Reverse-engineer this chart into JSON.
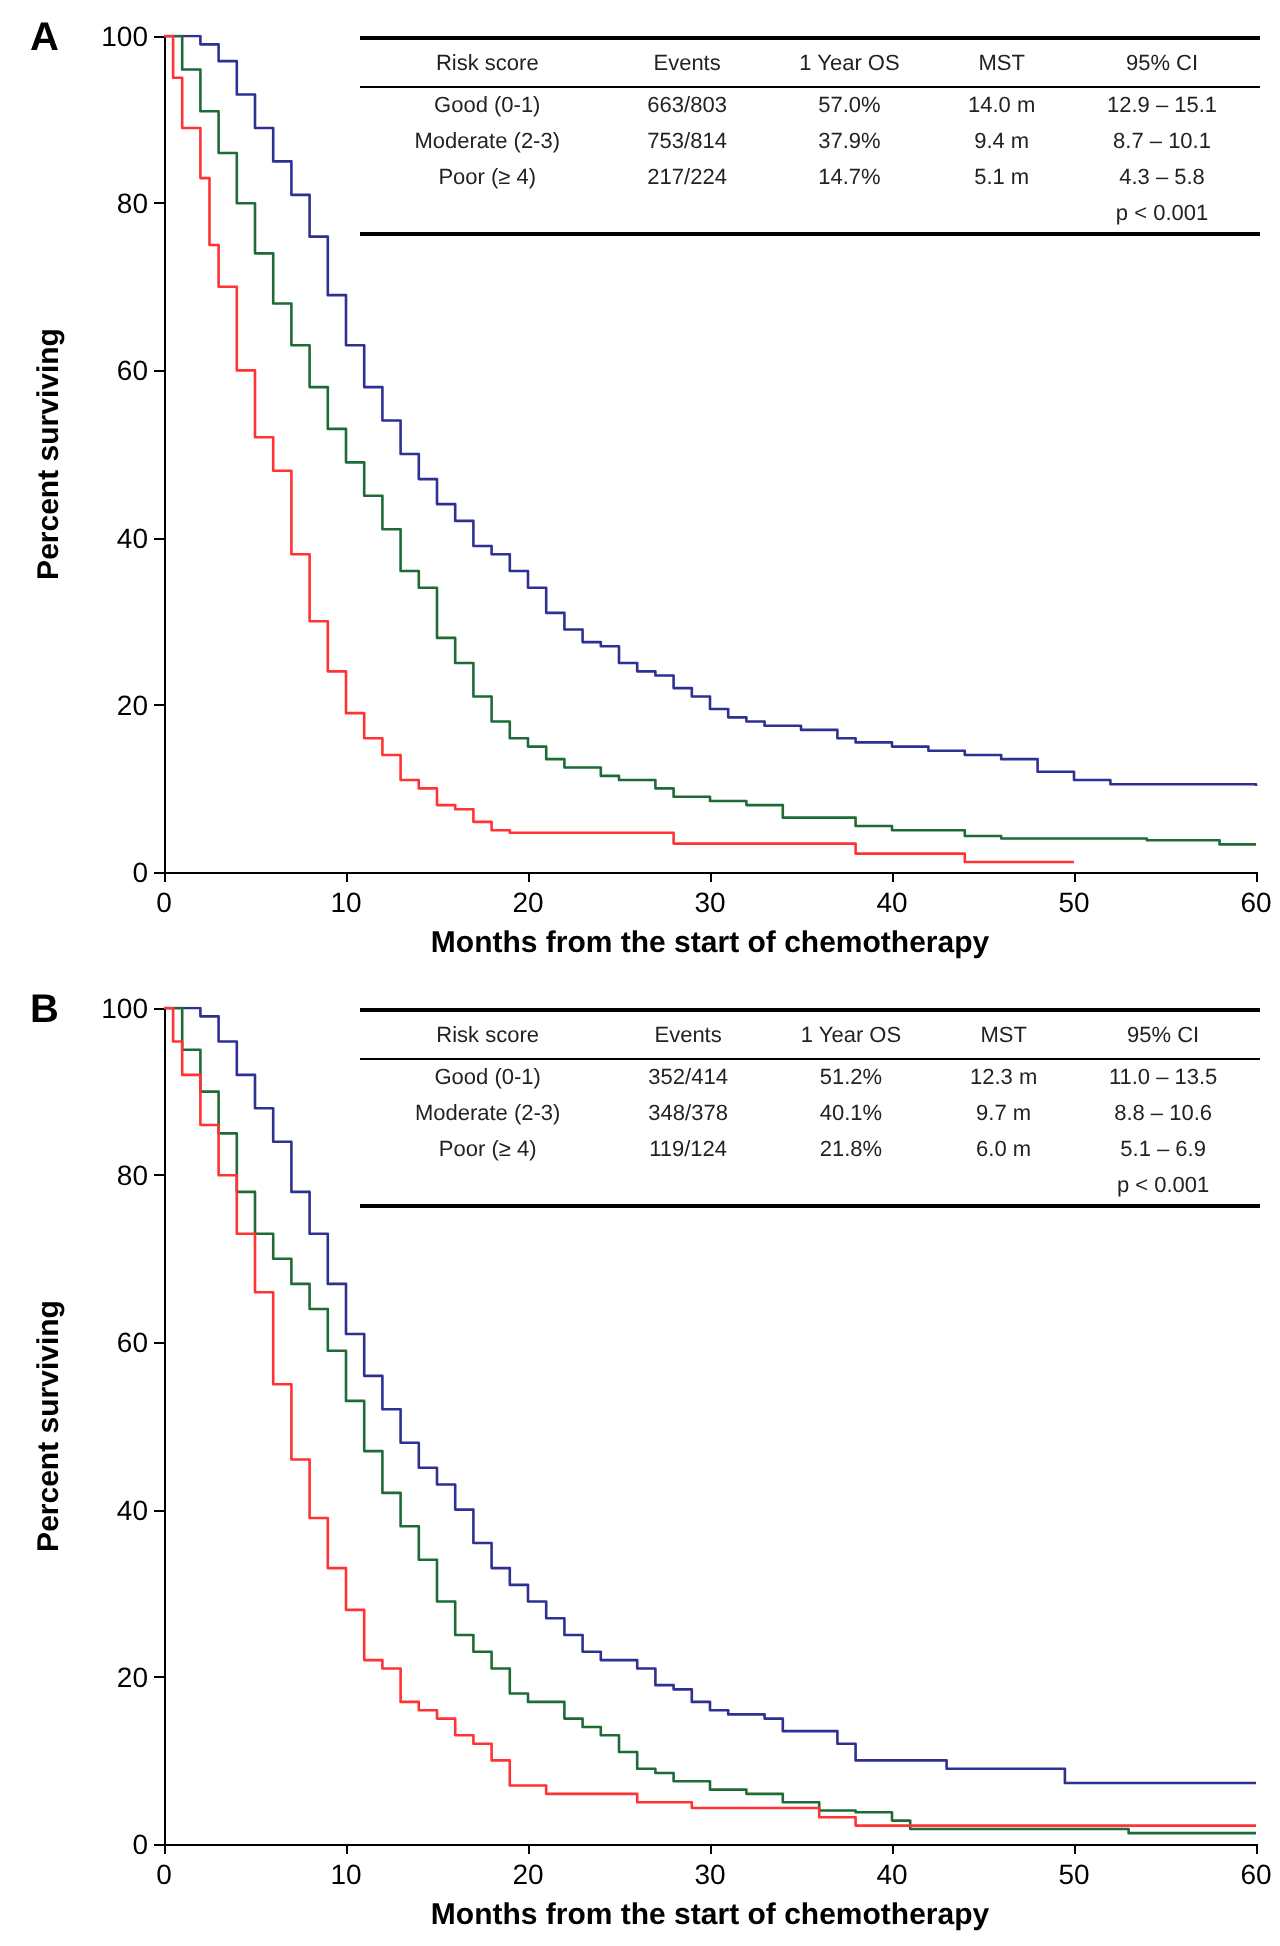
{
  "chart_data": [
    {
      "type": "step",
      "title": "A",
      "xlabel": "Months from the start of chemotherapy",
      "ylabel": "Percent surviving",
      "xlim": [
        0,
        60
      ],
      "xticks": [
        0,
        10,
        20,
        30,
        40,
        50,
        60
      ],
      "ylim": [
        0,
        100
      ],
      "yticks": [
        0,
        20,
        40,
        60,
        80,
        100
      ],
      "grid": false,
      "marker": "none",
      "line_style": "solid",
      "annotations": [
        "Risk score",
        "Events",
        "1 Year OS",
        "MST",
        "95% CI",
        "Good (0-1)",
        "663/803",
        "57.0%",
        "14.0 m",
        "12.9 – 15.1",
        "Moderate (2-3)",
        "753/814",
        "37.9%",
        "9.4 m",
        "8.7 – 10.1",
        "Poor (≥ 4)",
        "217/224",
        "14.7%",
        "5.1 m",
        "4.3 – 5.8",
        "p < 0.001"
      ],
      "series": [
        {
          "color": "#2e3192",
          "x": [
            0,
            1,
            2,
            3,
            4,
            5,
            6,
            7,
            8,
            9,
            10,
            11,
            12,
            13,
            14,
            15,
            16,
            17,
            18,
            19,
            20,
            21,
            22,
            23,
            24,
            25,
            26,
            27,
            28,
            29,
            30,
            31,
            32,
            33,
            35,
            37,
            38,
            40,
            42,
            44,
            46,
            48,
            50,
            52,
            56,
            60
          ],
          "values": [
            100,
            100,
            99,
            97,
            93,
            89,
            85,
            81,
            76,
            69,
            63,
            58,
            54,
            50,
            47,
            44,
            42,
            39,
            38,
            36,
            34,
            31,
            29,
            27.5,
            27,
            25,
            24,
            23.5,
            22,
            21,
            19.5,
            18.5,
            18,
            17.5,
            17,
            16,
            15.5,
            15,
            14.5,
            14,
            13.5,
            12,
            11,
            10.5,
            10.5,
            10.3
          ]
        },
        {
          "color": "#1e6b36",
          "x": [
            0,
            1,
            2,
            3,
            4,
            5,
            6,
            7,
            8,
            9,
            10,
            11,
            12,
            13,
            14,
            15,
            16,
            17,
            18,
            19,
            20,
            21,
            22,
            24,
            25,
            27,
            28,
            30,
            32,
            34,
            36,
            38,
            40,
            42,
            44,
            46,
            50,
            54,
            57,
            58,
            60
          ],
          "values": [
            100,
            96,
            91,
            86,
            80,
            74,
            68,
            63,
            58,
            53,
            49,
            45,
            41,
            36,
            34,
            28,
            25,
            21,
            18,
            16,
            15,
            13.5,
            12.5,
            11.5,
            11,
            10,
            9,
            8.5,
            8,
            6.5,
            6.5,
            5.5,
            5,
            5,
            4.3,
            4,
            4,
            3.8,
            3.8,
            3.3,
            3.3
          ]
        },
        {
          "color": "#ff3333",
          "x": [
            0,
            0.5,
            1,
            2,
            2.5,
            3,
            4,
            5,
            6,
            7,
            8,
            9,
            10,
            11,
            12,
            13,
            14,
            15,
            16,
            17,
            18,
            19,
            28,
            38,
            44,
            50
          ],
          "values": [
            100,
            95,
            89,
            83,
            75,
            70,
            60,
            52,
            48,
            38,
            30,
            24,
            19,
            16,
            14,
            11,
            10,
            8,
            7.5,
            6,
            5,
            4.7,
            3.4,
            2.2,
            1.2,
            1.2
          ]
        }
      ]
    },
    {
      "type": "step",
      "title": "B",
      "xlabel": "Months from the start of chemotherapy",
      "ylabel": "Percent surviving",
      "xlim": [
        0,
        60
      ],
      "xticks": [
        0,
        10,
        20,
        30,
        40,
        50,
        60
      ],
      "ylim": [
        0,
        100
      ],
      "yticks": [
        0,
        20,
        40,
        60,
        80,
        100
      ],
      "grid": false,
      "marker": "none",
      "line_style": "solid",
      "annotations": [
        "Risk score",
        "Events",
        "1 Year OS",
        "MST",
        "95% CI",
        "Good (0-1)",
        "352/414",
        "51.2%",
        "12.3 m",
        "11.0 – 13.5",
        "Moderate (2-3)",
        "348/378",
        "40.1%",
        "9.7 m",
        "8.8 – 10.6",
        "Poor (≥ 4)",
        "119/124",
        "21.8%",
        "6.0 m",
        "5.1 – 6.9",
        "p < 0.001"
      ],
      "series": [
        {
          "color": "#2e3192",
          "x": [
            0,
            1,
            2,
            3,
            4,
            5,
            6,
            7,
            8,
            9,
            10,
            11,
            12,
            13,
            14,
            15,
            16,
            17,
            18,
            19,
            20,
            21,
            22,
            23,
            24,
            26,
            27,
            28,
            29,
            30,
            31,
            33,
            34,
            36,
            37,
            38,
            43,
            49.5,
            60
          ],
          "values": [
            100,
            100,
            99,
            96,
            92,
            88,
            84,
            78,
            73,
            67,
            61,
            56,
            52,
            48,
            45,
            43,
            40,
            36,
            33,
            31,
            29,
            27,
            25,
            23,
            22,
            21,
            19,
            18.5,
            17,
            16,
            15.5,
            15,
            13.5,
            13.5,
            12,
            10,
            9,
            7.3,
            7.3
          ]
        },
        {
          "color": "#1e6b36",
          "x": [
            0,
            1,
            2,
            3,
            4,
            5,
            6,
            7,
            8,
            9,
            10,
            11,
            12,
            13,
            14,
            15,
            16,
            17,
            18,
            19,
            20,
            22,
            23,
            24,
            25,
            26,
            27,
            28,
            30,
            32,
            34,
            36,
            38,
            40,
            41,
            53,
            60
          ],
          "values": [
            100,
            95,
            90,
            85,
            78,
            73,
            70,
            67,
            64,
            59,
            53,
            47,
            42,
            38,
            34,
            29,
            25,
            23,
            21,
            18,
            17,
            15,
            14,
            13,
            11,
            9,
            8.5,
            7.5,
            6.5,
            6,
            5,
            4,
            3.8,
            2.8,
            1.8,
            1.3,
            1.3
          ]
        },
        {
          "color": "#ff3333",
          "x": [
            0,
            0.5,
            1,
            2,
            3,
            4,
            5,
            6,
            7,
            8,
            9,
            10,
            11,
            12,
            13,
            14,
            15,
            16,
            17,
            18,
            19,
            21,
            26,
            29,
            36,
            38,
            60
          ],
          "values": [
            100,
            96,
            92,
            86,
            80,
            73,
            66,
            55,
            46,
            39,
            33,
            28,
            22,
            21,
            17,
            16,
            15,
            13,
            12,
            10,
            7,
            6,
            5,
            4.3,
            3.2,
            2.2,
            2.2
          ]
        }
      ]
    }
  ]
}
